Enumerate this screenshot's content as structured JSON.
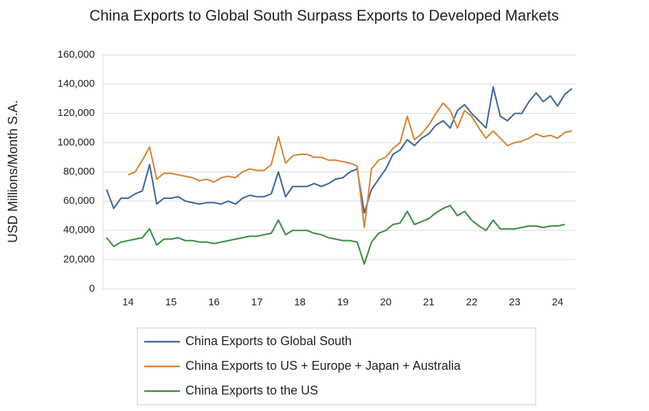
{
  "chart_data": {
    "type": "line",
    "title": "China Exports to Global South Surpass Exports to Developed Markets",
    "y_label": "USD Millions/Month S.A.",
    "categories": [
      null,
      null,
      null,
      "14",
      null,
      null,
      null,
      null,
      null,
      "15",
      null,
      null,
      null,
      null,
      null,
      "16",
      null,
      null,
      null,
      null,
      null,
      "17",
      null,
      null,
      null,
      null,
      null,
      "18",
      null,
      null,
      null,
      null,
      null,
      "19",
      null,
      null,
      null,
      null,
      null,
      "20",
      null,
      null,
      null,
      null,
      null,
      "21",
      null,
      null,
      null,
      null,
      null,
      "22",
      null,
      null,
      null,
      null,
      null,
      "23",
      null,
      null,
      null,
      null,
      null,
      "24",
      null,
      null
    ],
    "series": [
      {
        "name": "China Exports to Global South",
        "color": "#41699b",
        "values": [
          68000,
          55000,
          62000,
          62000,
          65000,
          67000,
          85000,
          58000,
          62000,
          62000,
          63000,
          60000,
          59000,
          58000,
          59000,
          59000,
          58000,
          60000,
          58000,
          62000,
          64000,
          63000,
          63000,
          65000,
          80000,
          63000,
          70000,
          70000,
          70000,
          72000,
          70000,
          72000,
          75000,
          76000,
          80000,
          82000,
          52000,
          68000,
          75000,
          82000,
          92000,
          95000,
          102000,
          98000,
          103000,
          106000,
          112000,
          115000,
          110000,
          122000,
          126000,
          120000,
          115000,
          110000,
          138000,
          118000,
          115000,
          120000,
          120000,
          128000,
          134000,
          128000,
          132000,
          125000,
          133000,
          137000
        ]
      },
      {
        "name": "China Exports to US + Europe + Japan + Australia",
        "color": "#d4883a",
        "values": [
          null,
          null,
          null,
          78000,
          80000,
          88000,
          97000,
          75000,
          79000,
          79000,
          78000,
          77000,
          76000,
          74000,
          75000,
          73000,
          76000,
          77000,
          76000,
          80000,
          82000,
          81000,
          81000,
          85000,
          104000,
          86000,
          91000,
          92000,
          92000,
          90000,
          90000,
          88000,
          88000,
          87000,
          86000,
          84000,
          42000,
          82000,
          88000,
          90000,
          96000,
          100000,
          118000,
          102000,
          106000,
          112000,
          120000,
          127000,
          122000,
          110000,
          122000,
          118000,
          110000,
          103000,
          108000,
          103000,
          98000,
          100000,
          101000,
          103000,
          106000,
          104000,
          105000,
          103000,
          107000,
          108000
        ]
      },
      {
        "name": "China Exports to the US",
        "color": "#3f8f46",
        "values": [
          35000,
          29000,
          32000,
          33000,
          34000,
          35000,
          41000,
          30000,
          34000,
          34000,
          35000,
          33000,
          33000,
          32000,
          32000,
          31000,
          32000,
          33000,
          34000,
          35000,
          36000,
          36000,
          37000,
          38000,
          47000,
          37000,
          40000,
          40000,
          40000,
          38000,
          37000,
          35000,
          34000,
          33000,
          33000,
          32000,
          17000,
          32000,
          38000,
          40000,
          44000,
          45000,
          53000,
          44000,
          46000,
          48000,
          52000,
          55000,
          57000,
          50000,
          53000,
          47000,
          43000,
          40000,
          47000,
          41000,
          41000,
          41000,
          42000,
          43000,
          43000,
          42000,
          43000,
          43000,
          44000,
          null
        ]
      }
    ],
    "ylim": [
      0,
      160000
    ],
    "yticks": [
      0,
      {
        "value": 20000,
        "label": "20,000"
      },
      {
        "value": 40000,
        "label": "40,000"
      },
      {
        "value": 60000,
        "label": "60,000"
      },
      {
        "value": 80000,
        "label": "80,000"
      },
      {
        "value": 100000,
        "label": "100,000"
      },
      {
        "value": 120000,
        "label": "120,000"
      },
      {
        "value": 140000,
        "label": "140,000"
      },
      {
        "value": 160000,
        "label": "160,000"
      }
    ],
    "grid": true
  }
}
